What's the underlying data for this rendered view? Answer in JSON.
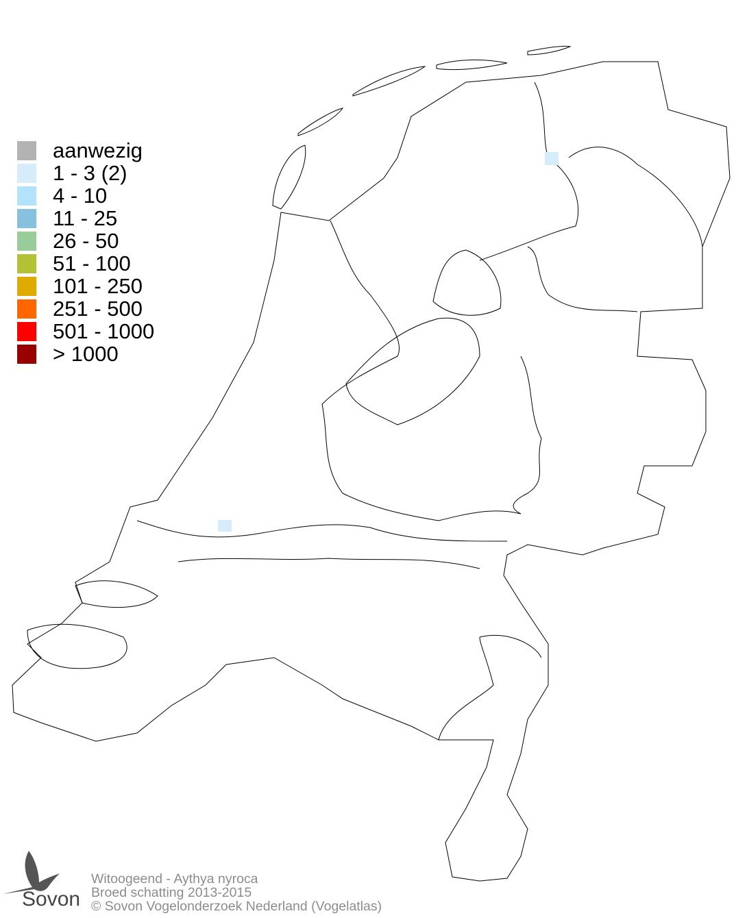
{
  "legend": {
    "items": [
      {
        "label": "aanwezig",
        "color": "#b3b3b3"
      },
      {
        "label": "1 - 3 (2)",
        "color": "#d6ecfa"
      },
      {
        "label": "4 - 10",
        "color": "#b3e3fa"
      },
      {
        "label": "11 - 25",
        "color": "#86c1e0"
      },
      {
        "label": "26 - 50",
        "color": "#99cc99"
      },
      {
        "label": "51 - 100",
        "color": "#b2c234"
      },
      {
        "label": "101 - 250",
        "color": "#e0ab00"
      },
      {
        "label": "251 - 500",
        "color": "#ff6600"
      },
      {
        "label": "501 - 1000",
        "color": "#ff0000"
      },
      {
        "label": "> 1000",
        "color": "#990000"
      }
    ]
  },
  "map": {
    "occupied_cells": [
      {
        "category": "1 - 3 (2)",
        "color": "#d6ecfa",
        "region": "Groningen"
      },
      {
        "category": "1 - 3 (2)",
        "color": "#d6ecfa",
        "region": "Rotterdam"
      }
    ]
  },
  "footer": {
    "line1": "Witoogeend - Aythya nyroca",
    "line2": "Broed schatting 2013-2015",
    "line3": "© Sovon Vogelonderzoek Nederland (Vogelatlas)"
  },
  "logo": {
    "text": "Sovon"
  }
}
